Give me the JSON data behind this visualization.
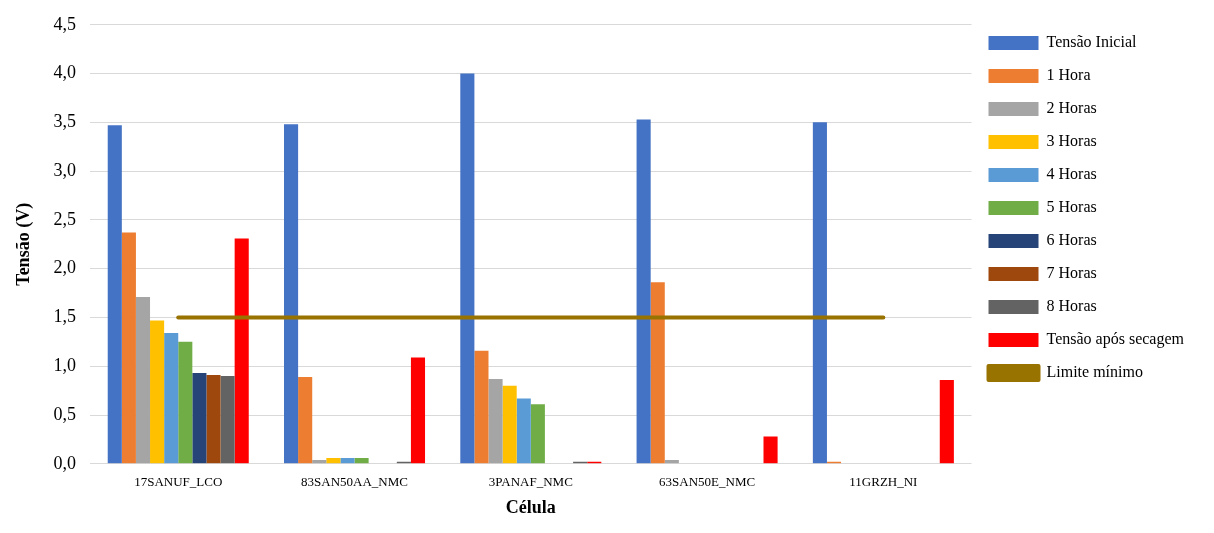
{
  "chart_data": {
    "type": "bar",
    "categories": [
      "17SANUF_LCO",
      "83SAN50AA_NMC",
      "3PANAF_NMC",
      "63SAN50E_NMC",
      "11GRZH_NI"
    ],
    "xlabel": "Célula",
    "ylabel": "Tensão (V)",
    "ylim": [
      0,
      4.5
    ],
    "yticks": [
      {
        "value": 0,
        "label": "0,0"
      },
      {
        "value": 0.5,
        "label": "0,5"
      },
      {
        "value": 1,
        "label": "1,0"
      },
      {
        "value": 1.5,
        "label": "1,5"
      },
      {
        "value": 2,
        "label": "2,0"
      },
      {
        "value": 2.5,
        "label": "2,5"
      },
      {
        "value": 3,
        "label": "3,0"
      },
      {
        "value": 3.5,
        "label": "3,5"
      },
      {
        "value": 4,
        "label": "4,0"
      },
      {
        "value": 4.5,
        "label": "4,5"
      }
    ],
    "grid": "y",
    "legend": "right",
    "series": [
      {
        "name": "Tensão Inicial",
        "color": "#4472c4",
        "values": [
          3.47,
          3.48,
          4.0,
          3.53,
          3.5
        ]
      },
      {
        "name": "1 Hora",
        "color": "#ed7d31",
        "values": [
          2.37,
          0.89,
          1.16,
          1.86,
          0.02
        ]
      },
      {
        "name": "2 Horas",
        "color": "#a5a5a5",
        "values": [
          1.71,
          0.04,
          0.87,
          0.04,
          0
        ]
      },
      {
        "name": "3 Horas",
        "color": "#ffc000",
        "values": [
          1.47,
          0.06,
          0.8,
          0,
          0
        ]
      },
      {
        "name": "4 Horas",
        "color": "#5b9bd5",
        "values": [
          1.34,
          0.06,
          0.67,
          0,
          0
        ]
      },
      {
        "name": "5 Horas",
        "color": "#70ad47",
        "values": [
          1.25,
          0.06,
          0.61,
          0,
          0
        ]
      },
      {
        "name": "6 Horas",
        "color": "#264478",
        "values": [
          0.93,
          0,
          0,
          0,
          0
        ]
      },
      {
        "name": "7 Horas",
        "color": "#9e480e",
        "values": [
          0.91,
          0,
          0,
          0,
          0
        ]
      },
      {
        "name": "8 Horas",
        "color": "#636363",
        "values": [
          0.9,
          0.02,
          0.02,
          0,
          0
        ]
      },
      {
        "name": "Tensão após secagem",
        "color": "#ff0000",
        "values": [
          2.31,
          1.09,
          0.02,
          0.28,
          0.86
        ]
      },
      {
        "name": "Limite mínimo",
        "type": "line",
        "color": "#997300",
        "marker": "none",
        "values": [
          1.5,
          1.5,
          1.5,
          1.5,
          1.5
        ]
      }
    ]
  }
}
